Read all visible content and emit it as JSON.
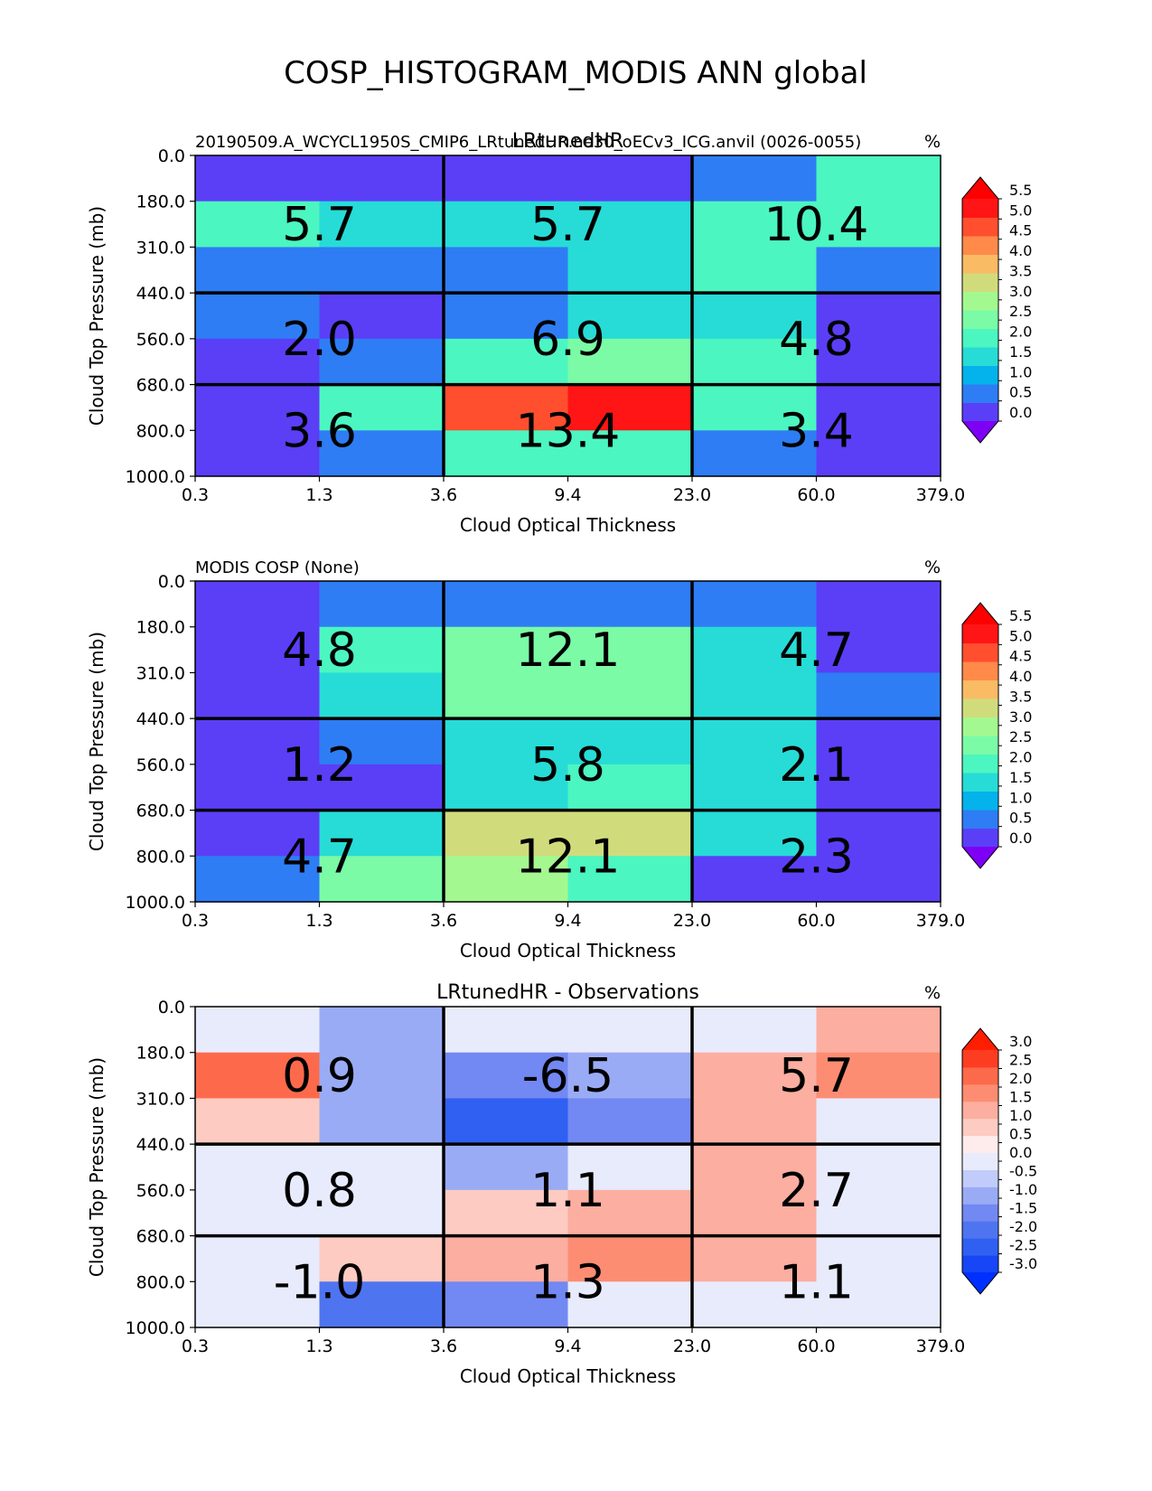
{
  "figure_title": "COSP_HISTOGRAM_MODIS ANN global",
  "chart_data": [
    {
      "type": "heatmap",
      "left_title": "20190509.A_WCYCL1950S_CMIP6_LRtunedHR.ne30_oECv3_ICG.anvil (0026-0055)",
      "center_title": "LRtunedHR",
      "units": "%",
      "xlabel": "Cloud Optical Thickness",
      "ylabel": "Cloud Top Pressure (mb)",
      "x_ticks": [
        "0.3",
        "1.3",
        "3.6",
        "9.4",
        "23.0",
        "60.0",
        "379.0"
      ],
      "y_ticks": [
        "0.0",
        "180.0",
        "310.0",
        "440.0",
        "560.0",
        "680.0",
        "800.0",
        "1000.0"
      ],
      "colorbar_ticks": [
        "0.0",
        "0.5",
        "1.0",
        "1.5",
        "2.0",
        "2.5",
        "3.0",
        "3.5",
        "4.0",
        "4.5",
        "5.0",
        "5.5"
      ],
      "colorbar_range": [
        0.0,
        5.5
      ],
      "colorbar_colors": [
        "#5a3ff7",
        "#2e7df4",
        "#04b2ec",
        "#27dcd6",
        "#4cf6c0",
        "#7bfba6",
        "#a4f890",
        "#d0dc7c",
        "#f9bb64",
        "#ff8a4a",
        "#ff4f2f",
        "#ff1515"
      ],
      "colorbar_under": "#7d00f5",
      "colorbar_over": "#ff0000",
      "grid_values": [
        [
          0.1,
          0.1,
          0.2,
          0.2,
          0.8,
          1.9
        ],
        [
          2.2,
          1.5,
          1.5,
          1.5,
          2.1,
          2.2
        ],
        [
          0.7,
          0.7,
          0.7,
          1.4,
          2.1,
          0.7
        ],
        [
          0.7,
          0.2,
          0.7,
          1.4,
          1.8,
          0.3
        ],
        [
          0.2,
          0.7,
          2.2,
          2.7,
          2.1,
          0.2
        ],
        [
          0.1,
          1.9,
          4.6,
          5.2,
          2.2,
          0.2
        ],
        [
          0.2,
          0.7,
          1.9,
          1.9,
          0.7,
          0.2
        ]
      ],
      "block_values": [
        [
          "5.7",
          "5.7",
          "10.4"
        ],
        [
          "2.0",
          "6.9",
          "4.8"
        ],
        [
          "3.6",
          "13.4",
          "3.4"
        ]
      ]
    },
    {
      "type": "heatmap",
      "left_title": "MODIS COSP (None)",
      "center_title": "",
      "units": "%",
      "xlabel": "Cloud Optical Thickness",
      "ylabel": "Cloud Top Pressure (mb)",
      "x_ticks": [
        "0.3",
        "1.3",
        "3.6",
        "9.4",
        "23.0",
        "60.0",
        "379.0"
      ],
      "y_ticks": [
        "0.0",
        "180.0",
        "310.0",
        "440.0",
        "560.0",
        "680.0",
        "800.0",
        "1000.0"
      ],
      "colorbar_ticks": [
        "0.0",
        "0.5",
        "1.0",
        "1.5",
        "2.0",
        "2.5",
        "3.0",
        "3.5",
        "4.0",
        "4.5",
        "5.0",
        "5.5"
      ],
      "colorbar_range": [
        0.0,
        5.5
      ],
      "colorbar_colors": [
        "#5a3ff7",
        "#2e7df4",
        "#04b2ec",
        "#27dcd6",
        "#4cf6c0",
        "#7bfba6",
        "#a4f890",
        "#d0dc7c",
        "#f9bb64",
        "#ff8a4a",
        "#ff4f2f",
        "#ff1515"
      ],
      "colorbar_under": "#7d00f5",
      "colorbar_over": "#ff0000",
      "grid_values": [
        [
          0.2,
          0.7,
          0.7,
          0.7,
          0.7,
          0.2
        ],
        [
          0.2,
          1.9,
          2.7,
          2.7,
          1.4,
          0.2
        ],
        [
          0.2,
          1.4,
          2.7,
          2.6,
          1.4,
          0.7
        ],
        [
          0.2,
          0.8,
          1.4,
          1.4,
          1.4,
          0.2
        ],
        [
          0.2,
          0.2,
          1.4,
          1.9,
          1.4,
          0.2
        ],
        [
          0.3,
          1.4,
          3.6,
          3.6,
          1.4,
          0.2
        ],
        [
          0.7,
          2.6,
          3.1,
          1.9,
          0.2,
          0.2
        ]
      ],
      "block_values": [
        [
          "4.8",
          "12.1",
          "4.7"
        ],
        [
          "1.2",
          "5.8",
          "2.1"
        ],
        [
          "4.7",
          "12.1",
          "2.3"
        ]
      ]
    },
    {
      "type": "heatmap",
      "left_title": "",
      "center_title": "LRtunedHR - Observations",
      "units": "%",
      "xlabel": "Cloud Optical Thickness",
      "ylabel": "Cloud Top Pressure (mb)",
      "x_ticks": [
        "0.3",
        "1.3",
        "3.6",
        "9.4",
        "23.0",
        "60.0",
        "379.0"
      ],
      "y_ticks": [
        "0.0",
        "180.0",
        "310.0",
        "440.0",
        "560.0",
        "680.0",
        "800.0",
        "1000.0"
      ],
      "colorbar_ticks": [
        "-3.0",
        "-2.5",
        "-2.0",
        "-1.5",
        "-1.0",
        "-0.5",
        "0.0",
        "0.5",
        "1.0",
        "1.5",
        "2.0",
        "2.5",
        "3.0"
      ],
      "colorbar_range": [
        -3.0,
        3.0
      ],
      "colorbar_colors": [
        "#1646f5",
        "#3060f2",
        "#4f74f0",
        "#7288f2",
        "#9aabf6",
        "#c1ccfb",
        "#e8ebfc",
        "#fdeceb",
        "#fdcbc1",
        "#fcaea0",
        "#fd8d72",
        "#fd6a4b",
        "#fd3d22"
      ],
      "colorbar_under": "#0030ff",
      "colorbar_over": "#ff1e00",
      "grid_values": [
        [
          0.2,
          -0.7,
          -0.2,
          -0.2,
          0.2,
          1.2
        ],
        [
          2.2,
          -0.7,
          -1.2,
          -0.7,
          1.2,
          1.7
        ],
        [
          0.7,
          -0.7,
          -2.2,
          -1.2,
          1.2,
          0.2
        ],
        [
          0.2,
          -0.2,
          -0.7,
          0.2,
          1.2,
          0.2
        ],
        [
          0.2,
          0.2,
          0.7,
          1.2,
          1.2,
          0.2
        ],
        [
          0.2,
          0.7,
          1.2,
          1.7,
          1.2,
          -0.2
        ],
        [
          -0.2,
          -1.7,
          -1.2,
          0.2,
          0.2,
          -0.2
        ]
      ],
      "block_values": [
        [
          "0.9",
          "-6.5",
          "5.7"
        ],
        [
          "0.8",
          "1.1",
          "2.7"
        ],
        [
          "-1.0",
          "1.3",
          "1.1"
        ]
      ]
    }
  ]
}
